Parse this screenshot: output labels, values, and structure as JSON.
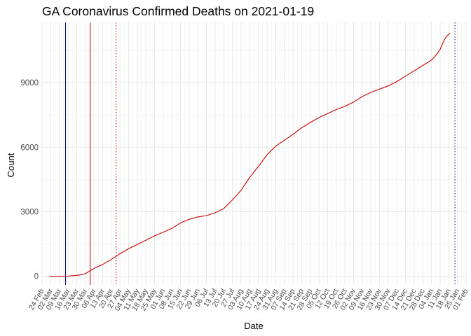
{
  "chart_data": {
    "type": "line",
    "title": "GA Coronavirus Confirmed Deaths on 2021-01-19",
    "xlabel": "Date",
    "ylabel": "Count",
    "xlim": [
      "2020-02-24",
      "2021-02-01"
    ],
    "ylim": [
      -400,
      11800
    ],
    "y_ticks": [
      0,
      3000,
      6000,
      9000
    ],
    "x_ticks": [
      "24 Feb",
      "02 Mar",
      "09 Mar",
      "16 Mar",
      "23 Mar",
      "30 Mar",
      "06 Apr",
      "13 Apr",
      "20 Apr",
      "27 Apr",
      "04 May",
      "11 May",
      "18 May",
      "25 May",
      "01 Jun",
      "08 Jun",
      "15 Jun",
      "22 Jun",
      "29 Jun",
      "06 Jul",
      "13 Jul",
      "20 Jul",
      "27 Jul",
      "03 Aug",
      "10 Aug",
      "17 Aug",
      "24 Aug",
      "31 Aug",
      "07 Sep",
      "14 Sep",
      "21 Sep",
      "28 Sep",
      "05 Oct",
      "12 Oct",
      "19 Oct",
      "26 Oct",
      "02 Nov",
      "09 Nov",
      "16 Nov",
      "23 Nov",
      "30 Nov",
      "07 Dec",
      "14 Dec",
      "21 Dec",
      "28 Dec",
      "04 Jan",
      "11 Jan",
      "18 Jan",
      "25 Jan",
      "01 Feb"
    ],
    "x_tick_dates": [
      "2020-02-24",
      "2020-03-02",
      "2020-03-09",
      "2020-03-16",
      "2020-03-23",
      "2020-03-30",
      "2020-04-06",
      "2020-04-13",
      "2020-04-20",
      "2020-04-27",
      "2020-05-04",
      "2020-05-11",
      "2020-05-18",
      "2020-05-25",
      "2020-06-01",
      "2020-06-08",
      "2020-06-15",
      "2020-06-22",
      "2020-06-29",
      "2020-07-06",
      "2020-07-13",
      "2020-07-20",
      "2020-07-27",
      "2020-08-03",
      "2020-08-10",
      "2020-08-17",
      "2020-08-24",
      "2020-08-31",
      "2020-09-07",
      "2020-09-14",
      "2020-09-21",
      "2020-09-28",
      "2020-10-05",
      "2020-10-12",
      "2020-10-19",
      "2020-10-26",
      "2020-11-02",
      "2020-11-09",
      "2020-11-16",
      "2020-11-23",
      "2020-11-30",
      "2020-12-07",
      "2020-12-14",
      "2020-12-21",
      "2020-12-28",
      "2021-01-04",
      "2021-01-11",
      "2021-01-18",
      "2021-01-25",
      "2021-02-01"
    ],
    "grid": true,
    "series": [
      {
        "color": "#cc0000",
        "x": [
          "2020-03-01",
          "2020-03-10",
          "2020-03-16",
          "2020-03-20",
          "2020-03-25",
          "2020-03-30",
          "2020-04-04",
          "2020-04-08",
          "2020-04-13",
          "2020-04-20",
          "2020-04-27",
          "2020-05-04",
          "2020-05-11",
          "2020-05-18",
          "2020-05-25",
          "2020-06-01",
          "2020-06-08",
          "2020-06-15",
          "2020-06-22",
          "2020-06-29",
          "2020-07-06",
          "2020-07-13",
          "2020-07-20",
          "2020-07-27",
          "2020-08-03",
          "2020-08-10",
          "2020-08-17",
          "2020-08-24",
          "2020-08-31",
          "2020-09-07",
          "2020-09-14",
          "2020-09-21",
          "2020-09-28",
          "2020-10-05",
          "2020-10-12",
          "2020-10-19",
          "2020-10-26",
          "2020-11-02",
          "2020-11-09",
          "2020-11-16",
          "2020-11-23",
          "2020-11-30",
          "2020-12-07",
          "2020-12-14",
          "2020-12-21",
          "2020-12-28",
          "2021-01-04",
          "2021-01-08",
          "2021-01-11",
          "2021-01-14",
          "2021-01-16",
          "2021-01-19"
        ],
        "y": [
          0,
          0,
          10,
          30,
          60,
          120,
          300,
          420,
          550,
          780,
          1050,
          1280,
          1480,
          1680,
          1880,
          2050,
          2230,
          2480,
          2650,
          2760,
          2820,
          2950,
          3150,
          3550,
          4000,
          4600,
          5100,
          5650,
          6050,
          6320,
          6600,
          6900,
          7150,
          7380,
          7560,
          7750,
          7900,
          8100,
          8350,
          8550,
          8700,
          8850,
          9050,
          9300,
          9550,
          9800,
          10050,
          10300,
          10550,
          10950,
          11150,
          11300
        ]
      }
    ],
    "reference_lines": [
      {
        "date": "2020-03-14",
        "color": "#00008b",
        "style": "solid"
      },
      {
        "date": "2020-04-03",
        "color": "#cc0000",
        "style": "solid"
      },
      {
        "date": "2020-04-24",
        "color": "#cc0000",
        "style": "dotted"
      },
      {
        "date": "2021-01-23",
        "color": "#00008b",
        "style": "dotted"
      }
    ]
  }
}
